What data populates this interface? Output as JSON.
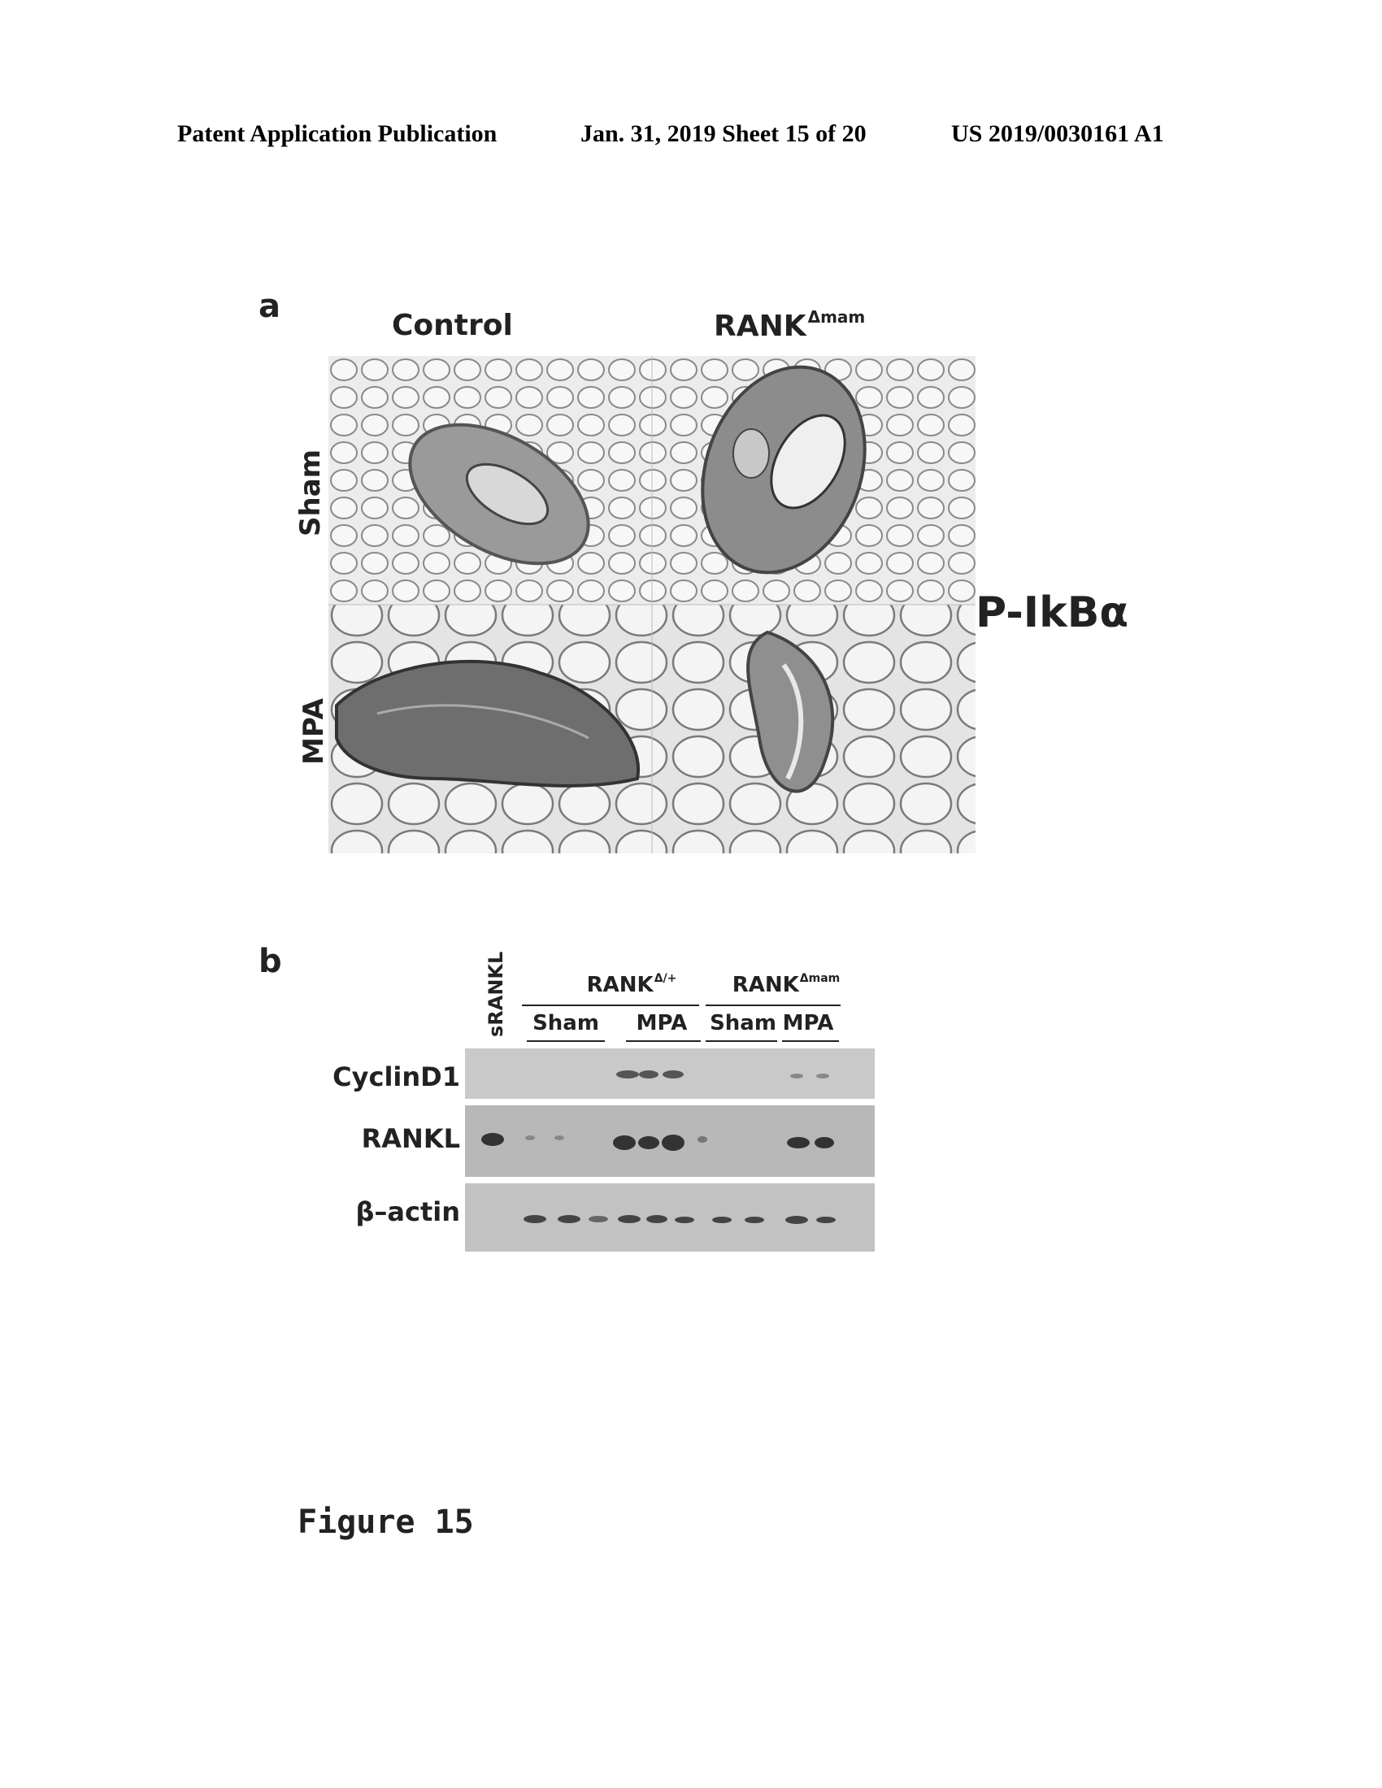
{
  "header": {
    "publication": "Patent Application Publication",
    "date_sheet": "Jan. 31, 2019  Sheet 15 of 20",
    "pub_number": "US 2019/0030161 A1"
  },
  "panel_a": {
    "letter": "a",
    "columns": [
      "Control",
      "RANK"
    ],
    "rank_superscript": "Δmam",
    "rows": [
      "Sham",
      "MPA"
    ],
    "stain": "P-IkBα"
  },
  "panel_b": {
    "letter": "b",
    "lane_label": "sRANKL",
    "groups": [
      {
        "name": "RANK",
        "superscript": "Δ/+"
      },
      {
        "name": "RANK",
        "superscript": "Δmam"
      }
    ],
    "subgroups": [
      "Sham",
      "MPA",
      "Sham",
      "MPA"
    ],
    "blots": [
      "CyclinD1",
      "RANKL",
      "β–actin"
    ]
  },
  "caption": "Figure 15"
}
